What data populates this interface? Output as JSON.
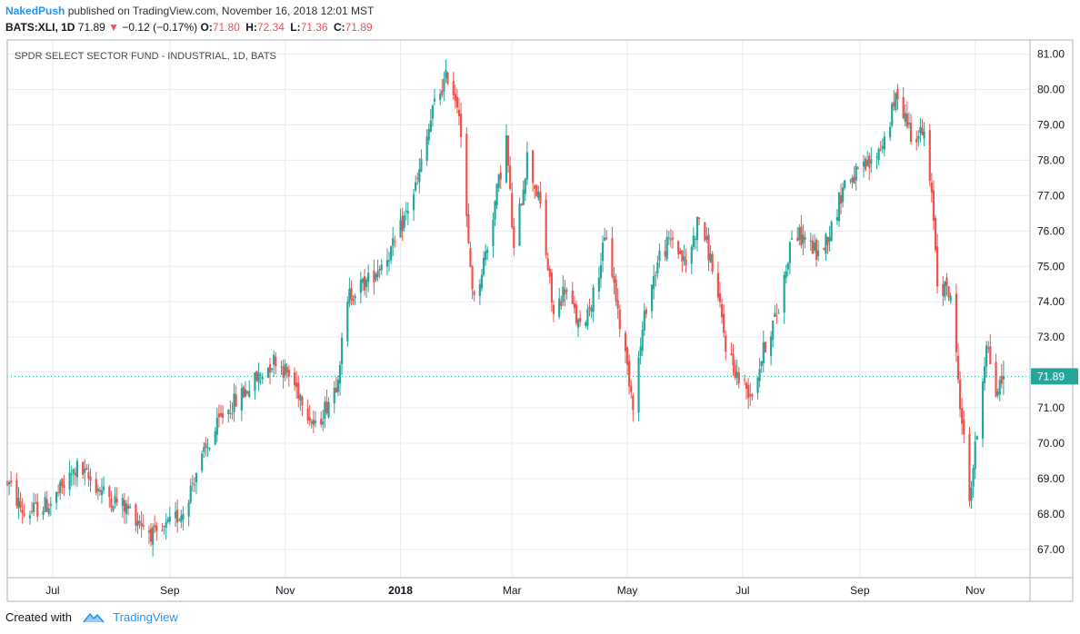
{
  "header": {
    "author": "NakedPush",
    "published": "published on TradingView.com, November 16, 2018 12:01 MST"
  },
  "ohlc": {
    "symbol": "BATS:XLI, 1D",
    "last": "71.89",
    "change": "−0.12 (−0.17%)",
    "o_label": "O:",
    "o": "71.80",
    "h_label": "H:",
    "h": "72.34",
    "l_label": "L:",
    "l": "71.36",
    "c_label": "C:",
    "c": "71.89"
  },
  "footer": {
    "created_with": "Created with",
    "brand": "TradingView"
  },
  "colors": {
    "up": "#26a69a",
    "down": "#ef5350",
    "grid": "#e9ecf2",
    "axis": "#b2b5be",
    "brand": "#2196f3",
    "price_tag": "#26a69a"
  },
  "chart_data": {
    "type": "candlestick",
    "title": "SPDR SELECT SECTOR FUND - INDUSTRIAL, 1D, BATS",
    "x_range": [
      "2017-06-07",
      "2018-11-30"
    ],
    "y_range": [
      66.2,
      81.4
    ],
    "y_ticks": [
      "67.00",
      "68.00",
      "69.00",
      "70.00",
      "71.00",
      "72.00",
      "73.00",
      "74.00",
      "75.00",
      "76.00",
      "77.00",
      "78.00",
      "79.00",
      "80.00",
      "81.00"
    ],
    "x_ticks": [
      {
        "label": "Jul",
        "date": "2017-07-01",
        "bold": false
      },
      {
        "label": "Sep",
        "date": "2017-09-01",
        "bold": false
      },
      {
        "label": "Nov",
        "date": "2017-11-01",
        "bold": false
      },
      {
        "label": "2018",
        "date": "2018-01-01",
        "bold": true
      },
      {
        "label": "Mar",
        "date": "2018-03-01",
        "bold": false
      },
      {
        "label": "May",
        "date": "2018-05-01",
        "bold": false
      },
      {
        "label": "Jul",
        "date": "2018-07-01",
        "bold": false
      },
      {
        "label": "Sep",
        "date": "2018-09-01",
        "bold": false
      },
      {
        "label": "Nov",
        "date": "2018-11-01",
        "bold": false
      }
    ],
    "last_price": "71.89",
    "last_value": 71.89,
    "grid": true,
    "trend_close": [
      [
        "2017-06-07",
        68.9
      ],
      [
        "2017-06-16",
        68.0
      ],
      [
        "2017-06-30",
        68.3
      ],
      [
        "2017-07-14",
        69.3
      ],
      [
        "2017-07-28",
        68.6
      ],
      [
        "2017-08-11",
        68.1
      ],
      [
        "2017-08-25",
        67.3
      ],
      [
        "2017-09-08",
        68.1
      ],
      [
        "2017-09-15",
        69.2
      ],
      [
        "2017-09-29",
        70.8
      ],
      [
        "2017-10-13",
        71.6
      ],
      [
        "2017-10-27",
        72.4
      ],
      [
        "2017-11-03",
        71.9
      ],
      [
        "2017-11-10",
        71.3
      ],
      [
        "2017-11-17",
        70.4
      ],
      [
        "2017-11-28",
        71.7
      ],
      [
        "2017-12-05",
        74.2
      ],
      [
        "2017-12-15",
        74.6
      ],
      [
        "2017-12-29",
        75.6
      ],
      [
        "2018-01-10",
        77.4
      ],
      [
        "2018-01-19",
        79.6
      ],
      [
        "2018-01-26",
        80.4
      ],
      [
        "2018-02-01",
        79.5
      ],
      [
        "2018-02-06",
        75.5
      ],
      [
        "2018-02-09",
        74.0
      ],
      [
        "2018-02-16",
        75.6
      ],
      [
        "2018-02-26",
        78.6
      ],
      [
        "2018-03-02",
        75.4
      ],
      [
        "2018-03-09",
        78.1
      ],
      [
        "2018-03-16",
        76.7
      ],
      [
        "2018-03-23",
        73.6
      ],
      [
        "2018-03-29",
        74.4
      ],
      [
        "2018-04-06",
        73.2
      ],
      [
        "2018-04-13",
        74.2
      ],
      [
        "2018-04-20",
        75.9
      ],
      [
        "2018-04-27",
        73.4
      ],
      [
        "2018-05-04",
        71.2
      ],
      [
        "2018-05-11",
        73.9
      ],
      [
        "2018-05-18",
        75.3
      ],
      [
        "2018-05-25",
        75.8
      ],
      [
        "2018-06-01",
        75.0
      ],
      [
        "2018-06-08",
        76.4
      ],
      [
        "2018-06-15",
        75.0
      ],
      [
        "2018-06-22",
        72.8
      ],
      [
        "2018-06-29",
        71.8
      ],
      [
        "2018-07-06",
        71.4
      ],
      [
        "2018-07-13",
        72.8
      ],
      [
        "2018-07-20",
        73.8
      ],
      [
        "2018-07-27",
        75.9
      ],
      [
        "2018-08-03",
        75.8
      ],
      [
        "2018-08-10",
        75.3
      ],
      [
        "2018-08-17",
        76.1
      ],
      [
        "2018-08-24",
        77.4
      ],
      [
        "2018-08-31",
        77.6
      ],
      [
        "2018-09-07",
        77.9
      ],
      [
        "2018-09-14",
        78.6
      ],
      [
        "2018-09-21",
        79.9
      ],
      [
        "2018-09-28",
        78.8
      ],
      [
        "2018-10-05",
        78.7
      ],
      [
        "2018-10-10",
        76.4
      ],
      [
        "2018-10-12",
        74.6
      ],
      [
        "2018-10-19",
        74.2
      ],
      [
        "2018-10-24",
        71.2
      ],
      [
        "2018-10-29",
        68.4
      ],
      [
        "2018-11-02",
        70.3
      ],
      [
        "2018-11-07",
        72.9
      ],
      [
        "2018-11-12",
        71.4
      ],
      [
        "2018-11-16",
        71.89
      ]
    ]
  }
}
